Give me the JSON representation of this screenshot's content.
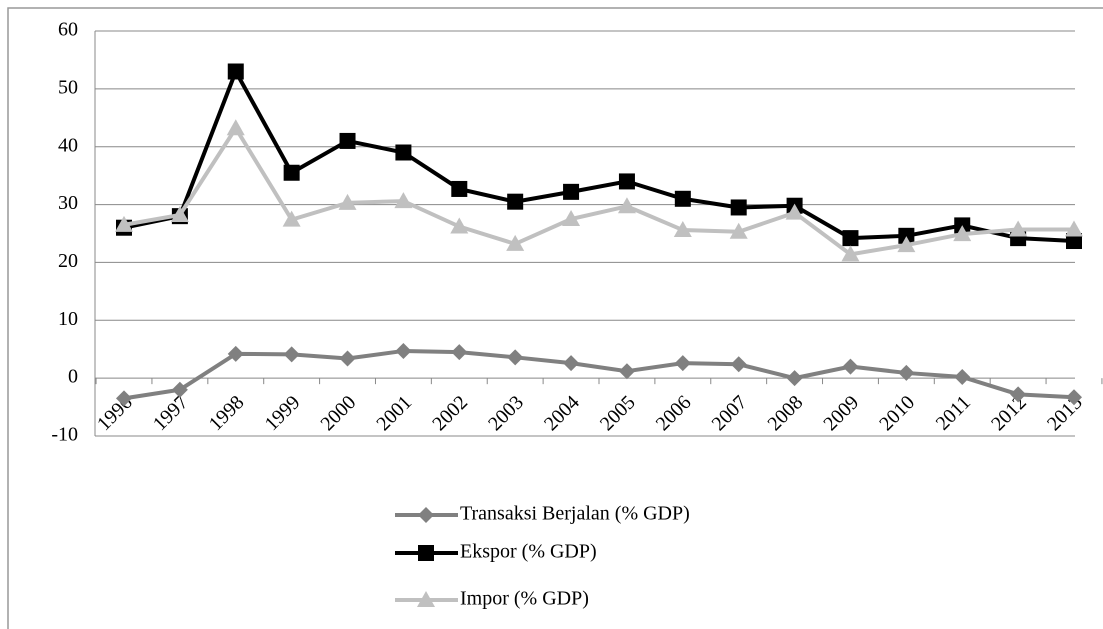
{
  "chart_data": {
    "type": "line",
    "categories": [
      "1996",
      "1997",
      "1998",
      "1999",
      "2000",
      "2001",
      "2002",
      "2003",
      "2004",
      "2005",
      "2006",
      "2007",
      "2008",
      "2009",
      "2010",
      "2011",
      "2012",
      "2013"
    ],
    "series": [
      {
        "name": "Transaksi Berjalan (% GDP)",
        "color": "#808080",
        "marker": "diamond",
        "values": [
          -3.5,
          -2,
          4.2,
          4.1,
          3.4,
          4.7,
          4.5,
          3.6,
          2.6,
          1.2,
          2.6,
          2.4,
          0.0,
          2.0,
          0.9,
          0.2,
          -2.8,
          -3.3
        ]
      },
      {
        "name": "Ekspor (% GDP)",
        "color": "#000000",
        "marker": "square",
        "values": [
          26,
          28,
          53,
          35.5,
          41,
          39,
          32.7,
          30.5,
          32.2,
          34,
          31,
          29.5,
          29.8,
          24.2,
          24.6,
          26.4,
          24.2,
          23.7
        ]
      },
      {
        "name": "Impor (% GDP)",
        "color": "#c0c0c0",
        "marker": "triangle",
        "values": [
          26.5,
          28.2,
          43.2,
          27.4,
          30.3,
          30.6,
          26.2,
          23.2,
          27.5,
          29.7,
          25.6,
          25.3,
          28.6,
          21.4,
          23,
          24.9,
          25.7,
          25.7
        ]
      }
    ],
    "ylim": [
      -10,
      60
    ],
    "yticks": [
      -10,
      0,
      10,
      20,
      30,
      40,
      50,
      60
    ],
    "grid": true,
    "legend": "bottom"
  }
}
